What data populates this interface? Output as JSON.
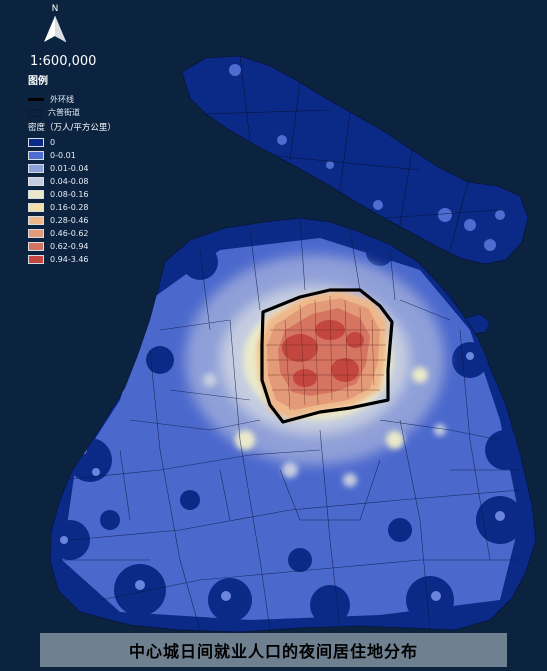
{
  "map": {
    "north_label": "N",
    "scale_label": "1:600,000",
    "legend": {
      "title": "图例",
      "ring_road_label": "外环线",
      "subdistrict_label": "六普街道",
      "density_title": "密度（万人/平方公里）",
      "density_classes": [
        {
          "label": "0",
          "color": "#0b2a88"
        },
        {
          "label": "0-0.01",
          "color": "#4f6cd1"
        },
        {
          "label": "0.01-0.04",
          "color": "#8f9fd8"
        },
        {
          "label": "0.04-0.08",
          "color": "#c5cde0"
        },
        {
          "label": "0.08-0.16",
          "color": "#eaeacb"
        },
        {
          "label": "0.16-0.28",
          "color": "#f4dfa8"
        },
        {
          "label": "0.28-0.46",
          "color": "#eeb78a"
        },
        {
          "label": "0.46-0.62",
          "color": "#e39a78"
        },
        {
          "label": "0.62-0.94",
          "color": "#d67462"
        },
        {
          "label": "0.94-3.46",
          "color": "#c4473f"
        }
      ]
    },
    "caption": "中心城日间就业人口的夜间居住地分布"
  }
}
